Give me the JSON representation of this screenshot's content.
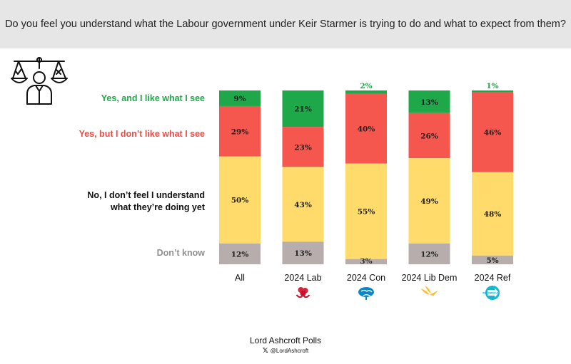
{
  "header": {
    "title": "Do you feel you understand what the Labour government under Keir Starmer is trying to do and what to expect from them?"
  },
  "chart_data": {
    "type": "bar",
    "stacked": true,
    "categories": [
      "All",
      "2024 Lab",
      "2024 Con",
      "2024 Lib Dem",
      "2024 Ref"
    ],
    "series": [
      {
        "name": "Yes, and I like what I see",
        "color": "#1fa84a",
        "values": [
          9,
          21,
          2,
          13,
          1
        ]
      },
      {
        "name": "Yes, but I don’t like what I see",
        "color": "#f5564e",
        "values": [
          29,
          23,
          40,
          26,
          46
        ]
      },
      {
        "name": "No, I don’t feel I understand what they’re doing yet",
        "color": "#fedb6b",
        "values": [
          50,
          43,
          55,
          49,
          48
        ]
      },
      {
        "name": "Don’t know",
        "color": "#b6adac",
        "values": [
          12,
          13,
          3,
          12,
          5
        ]
      }
    ],
    "data_labels": [
      [
        "9%",
        "21%",
        "2%",
        "13%",
        "1%"
      ],
      [
        "29%",
        "23%",
        "40%",
        "26%",
        "46%"
      ],
      [
        "50%",
        "43%",
        "55%",
        "49%",
        "48%"
      ],
      [
        "12%",
        "13%",
        "3%",
        "12%",
        "5%"
      ]
    ],
    "ylim": [
      0,
      100
    ],
    "label_colors": [
      "#1fa84a",
      "#f04a43",
      "#111111",
      "#8f8f8f"
    ],
    "party_icons": [
      "",
      "labour-rose-icon",
      "conservative-tree-icon",
      "libdem-bird-icon",
      "reform-logo-icon"
    ]
  },
  "row_labels": {
    "yes_like": "Yes, and I like what I see",
    "yes_dislike": "Yes, but I don’t like what I see",
    "no_understand_line1": "No, I don’t feel I understand",
    "no_understand_line2": "what they’re doing yet",
    "dont_know": "Don’t know"
  },
  "footer": {
    "title": "Lord Ashcroft Polls",
    "x_icon": "𝕏",
    "handle": "@LordAshcroft"
  },
  "reform_badge_text": "REFORM UK"
}
